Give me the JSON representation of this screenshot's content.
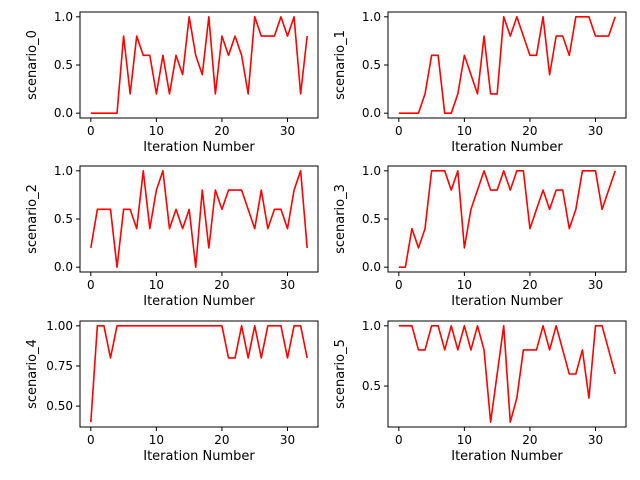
{
  "figure": {
    "background": "#ffffff",
    "line_color": "#ff0000"
  },
  "chart_data": [
    {
      "type": "line",
      "ylabel": "scenario_0",
      "xlabel": "Iteration Number",
      "xlim": [
        -1.65,
        34.65
      ],
      "ylim": [
        -0.05,
        1.05
      ],
      "xticks": [
        0,
        10,
        20,
        30
      ],
      "yticks": [
        0.0,
        0.5,
        1.0
      ],
      "ytick_labels": [
        "0.0",
        "0.5",
        "1.0"
      ],
      "grid": false,
      "series": [
        {
          "color": "#ff0000",
          "x": [
            0,
            1,
            2,
            3,
            4,
            5,
            6,
            7,
            8,
            9,
            10,
            11,
            12,
            13,
            14,
            15,
            16,
            17,
            18,
            19,
            20,
            21,
            22,
            23,
            24,
            25,
            26,
            27,
            28,
            29,
            30,
            31,
            32,
            33
          ],
          "y": [
            0,
            0,
            0,
            0,
            0,
            0.8,
            0.2,
            0.8,
            0.6,
            0.6,
            0.2,
            0.6,
            0.2,
            0.6,
            0.4,
            1.0,
            0.6,
            0.4,
            1.0,
            0.2,
            0.8,
            0.6,
            0.8,
            0.6,
            0.2,
            1.0,
            0.8,
            0.8,
            0.8,
            1.0,
            0.8,
            1.0,
            0.2,
            0.8
          ]
        }
      ]
    },
    {
      "type": "line",
      "ylabel": "scenario_1",
      "xlabel": "Iteration Number",
      "xlim": [
        -1.65,
        34.65
      ],
      "ylim": [
        -0.05,
        1.05
      ],
      "xticks": [
        0,
        10,
        20,
        30
      ],
      "yticks": [
        0.0,
        0.5,
        1.0
      ],
      "ytick_labels": [
        "0.0",
        "0.5",
        "1.0"
      ],
      "grid": false,
      "series": [
        {
          "color": "#ff0000",
          "x": [
            0,
            1,
            2,
            3,
            4,
            5,
            6,
            7,
            8,
            9,
            10,
            11,
            12,
            13,
            14,
            15,
            16,
            17,
            18,
            19,
            20,
            21,
            22,
            23,
            24,
            25,
            26,
            27,
            28,
            29,
            30,
            31,
            32,
            33
          ],
          "y": [
            0,
            0,
            0,
            0,
            0.2,
            0.6,
            0.6,
            0,
            0,
            0.2,
            0.6,
            0.4,
            0.2,
            0.8,
            0.2,
            0.2,
            1.0,
            0.8,
            1.0,
            0.8,
            0.6,
            0.6,
            1.0,
            0.4,
            0.8,
            0.8,
            0.6,
            1.0,
            1.0,
            1.0,
            0.8,
            0.8,
            0.8,
            1.0
          ]
        }
      ]
    },
    {
      "type": "line",
      "ylabel": "scenario_2",
      "xlabel": "Iteration Number",
      "xlim": [
        -1.65,
        34.65
      ],
      "ylim": [
        -0.05,
        1.05
      ],
      "xticks": [
        0,
        10,
        20,
        30
      ],
      "yticks": [
        0.0,
        0.5,
        1.0
      ],
      "ytick_labels": [
        "0.0",
        "0.5",
        "1.0"
      ],
      "grid": false,
      "series": [
        {
          "color": "#ff0000",
          "x": [
            0,
            1,
            2,
            3,
            4,
            5,
            6,
            7,
            8,
            9,
            10,
            11,
            12,
            13,
            14,
            15,
            16,
            17,
            18,
            19,
            20,
            21,
            22,
            23,
            24,
            25,
            26,
            27,
            28,
            29,
            30,
            31,
            32,
            33
          ],
          "y": [
            0.2,
            0.6,
            0.6,
            0.6,
            0,
            0.6,
            0.6,
            0.4,
            1.0,
            0.4,
            0.8,
            1.0,
            0.4,
            0.6,
            0.4,
            0.6,
            0,
            0.8,
            0.2,
            0.8,
            0.6,
            0.8,
            0.8,
            0.8,
            0.6,
            0.4,
            0.8,
            0.4,
            0.6,
            0.6,
            0.4,
            0.8,
            1.0,
            0.2
          ]
        }
      ]
    },
    {
      "type": "line",
      "ylabel": "scenario_3",
      "xlabel": "Iteration Number",
      "xlim": [
        -1.65,
        34.65
      ],
      "ylim": [
        -0.05,
        1.05
      ],
      "xticks": [
        0,
        10,
        20,
        30
      ],
      "yticks": [
        0.0,
        0.5,
        1.0
      ],
      "ytick_labels": [
        "0.0",
        "0.5",
        "1.0"
      ],
      "grid": false,
      "series": [
        {
          "color": "#ff0000",
          "x": [
            0,
            1,
            2,
            3,
            4,
            5,
            6,
            7,
            8,
            9,
            10,
            11,
            12,
            13,
            14,
            15,
            16,
            17,
            18,
            19,
            20,
            21,
            22,
            23,
            24,
            25,
            26,
            27,
            28,
            29,
            30,
            31,
            32,
            33
          ],
          "y": [
            0,
            0,
            0.4,
            0.2,
            0.4,
            1.0,
            1.0,
            1.0,
            0.8,
            1.0,
            0.2,
            0.6,
            0.8,
            1.0,
            0.8,
            0.8,
            1.0,
            0.8,
            1.0,
            1.0,
            0.4,
            0.6,
            0.8,
            0.6,
            0.8,
            0.8,
            0.4,
            0.6,
            1.0,
            1.0,
            1.0,
            0.6,
            0.8,
            1.0
          ]
        }
      ]
    },
    {
      "type": "line",
      "ylabel": "scenario_4",
      "xlabel": "Iteration Number",
      "xlim": [
        -1.65,
        34.65
      ],
      "ylim": [
        0.37,
        1.03
      ],
      "xticks": [
        0,
        10,
        20,
        30
      ],
      "yticks": [
        0.5,
        0.75,
        1.0
      ],
      "ytick_labels": [
        "0.50",
        "0.75",
        "1.00"
      ],
      "grid": false,
      "series": [
        {
          "color": "#ff0000",
          "x": [
            0,
            1,
            2,
            3,
            4,
            5,
            6,
            7,
            8,
            9,
            10,
            11,
            12,
            13,
            14,
            15,
            16,
            17,
            18,
            19,
            20,
            21,
            22,
            23,
            24,
            25,
            26,
            27,
            28,
            29,
            30,
            31,
            32,
            33
          ],
          "y": [
            0.4,
            1.0,
            1.0,
            0.8,
            1.0,
            1.0,
            1.0,
            1.0,
            1.0,
            1.0,
            1.0,
            1.0,
            1.0,
            1.0,
            1.0,
            1.0,
            1.0,
            1.0,
            1.0,
            1.0,
            1.0,
            0.8,
            0.8,
            1.0,
            0.8,
            1.0,
            0.8,
            1.0,
            1.0,
            1.0,
            0.8,
            1.0,
            1.0,
            0.8
          ]
        }
      ]
    },
    {
      "type": "line",
      "ylabel": "scenario_5",
      "xlabel": "Iteration Number",
      "xlim": [
        -1.65,
        34.65
      ],
      "ylim": [
        0.16,
        1.04
      ],
      "xticks": [
        0,
        10,
        20,
        30
      ],
      "yticks": [
        0.5,
        1.0
      ],
      "ytick_labels": [
        "0.5",
        "1.0"
      ],
      "grid": false,
      "series": [
        {
          "color": "#ff0000",
          "x": [
            0,
            1,
            2,
            3,
            4,
            5,
            6,
            7,
            8,
            9,
            10,
            11,
            12,
            13,
            14,
            15,
            16,
            17,
            18,
            19,
            20,
            21,
            22,
            23,
            24,
            25,
            26,
            27,
            28,
            29,
            30,
            31,
            32,
            33
          ],
          "y": [
            1.0,
            1.0,
            1.0,
            0.8,
            0.8,
            1.0,
            1.0,
            0.8,
            1.0,
            0.8,
            1.0,
            0.8,
            1.0,
            0.8,
            0.2,
            0.6,
            1.0,
            0.2,
            0.4,
            0.8,
            0.8,
            0.8,
            1.0,
            0.8,
            1.0,
            0.8,
            0.6,
            0.6,
            0.8,
            0.4,
            1.0,
            1.0,
            0.8,
            0.6
          ]
        }
      ]
    }
  ]
}
